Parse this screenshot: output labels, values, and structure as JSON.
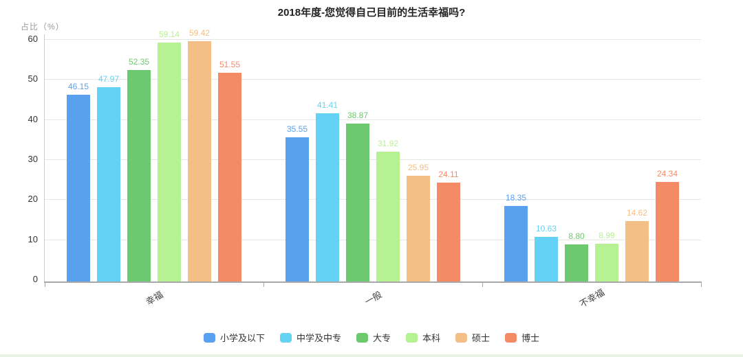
{
  "chart_data": {
    "type": "bar",
    "title": "2018年度-您觉得自己目前的生活幸福吗?",
    "ylabel": "占比（%）",
    "categories": [
      "幸福",
      "一般",
      "不幸福"
    ],
    "series": [
      {
        "name": "小学及以下",
        "color": "#59A1EE",
        "values": [
          46.15,
          35.55,
          18.35
        ]
      },
      {
        "name": "中学及中专",
        "color": "#64D2F5",
        "values": [
          47.97,
          41.41,
          10.63
        ]
      },
      {
        "name": "大专",
        "color": "#6CC96F",
        "values": [
          52.35,
          38.87,
          8.8
        ]
      },
      {
        "name": "本科",
        "color": "#B6F293",
        "values": [
          59.14,
          31.92,
          8.99
        ]
      },
      {
        "name": "硕士",
        "color": "#F3BF87",
        "values": [
          59.42,
          25.95,
          14.62
        ]
      },
      {
        "name": "博士",
        "color": "#F48B66",
        "values": [
          51.55,
          24.11,
          24.34
        ]
      }
    ],
    "ylim": [
      0,
      60
    ],
    "yticks": [
      0,
      10,
      20,
      30,
      40,
      50,
      60
    ],
    "grid": true,
    "legend_position": "bottom",
    "value_labels": true,
    "value_label_decimals": 2
  }
}
